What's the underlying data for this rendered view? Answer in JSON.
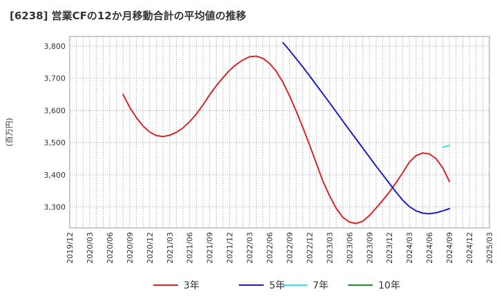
{
  "chart_data": {
    "type": "line",
    "title": "[6238]  営業CFの12か月移動合計の平均値の推移",
    "ylabel": "(百万円)",
    "xlabel": "",
    "ylim": [
      3235,
      3830
    ],
    "yticks": [
      3300,
      3400,
      3500,
      3600,
      3700,
      3800
    ],
    "ytick_labels": [
      "3,300",
      "3,400",
      "3,500",
      "3,600",
      "3,700",
      "3,800"
    ],
    "xticks": [
      "2019/12",
      "2020/03",
      "2020/06",
      "2020/09",
      "2020/12",
      "2021/03",
      "2021/06",
      "2021/09",
      "2021/12",
      "2022/03",
      "2022/06",
      "2022/09",
      "2022/12",
      "2023/03",
      "2023/06",
      "2023/09",
      "2023/12",
      "2024/03",
      "2024/06",
      "2024/09",
      "2024/12",
      "2025/03"
    ],
    "grid": true,
    "legend_position": "bottom",
    "series": [
      {
        "name": "3年",
        "color": "#dd2222",
        "points": [
          [
            "2020/08",
            3650
          ],
          [
            "2020/09",
            3610
          ],
          [
            "2020/10",
            3578
          ],
          [
            "2020/11",
            3552
          ],
          [
            "2020/12",
            3533
          ],
          [
            "2021/01",
            3522
          ],
          [
            "2021/02",
            3519
          ],
          [
            "2021/03",
            3523
          ],
          [
            "2021/04",
            3532
          ],
          [
            "2021/05",
            3546
          ],
          [
            "2021/06",
            3565
          ],
          [
            "2021/07",
            3589
          ],
          [
            "2021/08",
            3617
          ],
          [
            "2021/09",
            3649
          ],
          [
            "2021/10",
            3677
          ],
          [
            "2021/11",
            3702
          ],
          [
            "2021/12",
            3725
          ],
          [
            "2022/01",
            3743
          ],
          [
            "2022/02",
            3757
          ],
          [
            "2022/03",
            3767
          ],
          [
            "2022/04",
            3769
          ],
          [
            "2022/05",
            3762
          ],
          [
            "2022/06",
            3746
          ],
          [
            "2022/07",
            3722
          ],
          [
            "2022/08",
            3688
          ],
          [
            "2022/09",
            3645
          ],
          [
            "2022/10",
            3598
          ],
          [
            "2022/11",
            3547
          ],
          [
            "2022/12",
            3493
          ],
          [
            "2023/01",
            3437
          ],
          [
            "2023/02",
            3381
          ],
          [
            "2023/03",
            3335
          ],
          [
            "2023/04",
            3296
          ],
          [
            "2023/05",
            3268
          ],
          [
            "2023/06",
            3253
          ],
          [
            "2023/07",
            3249
          ],
          [
            "2023/08",
            3256
          ],
          [
            "2023/09",
            3274
          ],
          [
            "2023/10",
            3297
          ],
          [
            "2023/11",
            3321
          ],
          [
            "2023/12",
            3347
          ],
          [
            "2024/01",
            3376
          ],
          [
            "2024/02",
            3407
          ],
          [
            "2024/03",
            3440
          ],
          [
            "2024/04",
            3460
          ],
          [
            "2024/05",
            3468
          ],
          [
            "2024/06",
            3465
          ],
          [
            "2024/07",
            3450
          ],
          [
            "2024/08",
            3422
          ],
          [
            "2024/09",
            3379
          ]
        ]
      },
      {
        "name": "5年",
        "color": "#1a1acc",
        "points": [
          [
            "2022/08",
            3811
          ],
          [
            "2022/09",
            3787
          ],
          [
            "2022/10",
            3761
          ],
          [
            "2022/11",
            3735
          ],
          [
            "2022/12",
            3708
          ],
          [
            "2023/01",
            3680
          ],
          [
            "2023/02",
            3652
          ],
          [
            "2023/03",
            3624
          ],
          [
            "2023/04",
            3596
          ],
          [
            "2023/05",
            3567
          ],
          [
            "2023/06",
            3539
          ],
          [
            "2023/07",
            3511
          ],
          [
            "2023/08",
            3483
          ],
          [
            "2023/09",
            3455
          ],
          [
            "2023/10",
            3427
          ],
          [
            "2023/11",
            3400
          ],
          [
            "2023/12",
            3373
          ],
          [
            "2024/01",
            3346
          ],
          [
            "2024/02",
            3321
          ],
          [
            "2024/03",
            3301
          ],
          [
            "2024/04",
            3288
          ],
          [
            "2024/05",
            3281
          ],
          [
            "2024/06",
            3279
          ],
          [
            "2024/07",
            3282
          ],
          [
            "2024/08",
            3288
          ],
          [
            "2024/09",
            3295
          ]
        ]
      },
      {
        "name": "7年",
        "color": "#33e6e6",
        "points": [
          [
            "2024/08",
            3486
          ],
          [
            "2024/09",
            3491
          ]
        ]
      },
      {
        "name": "10年",
        "color": "#228822",
        "points": []
      }
    ]
  }
}
